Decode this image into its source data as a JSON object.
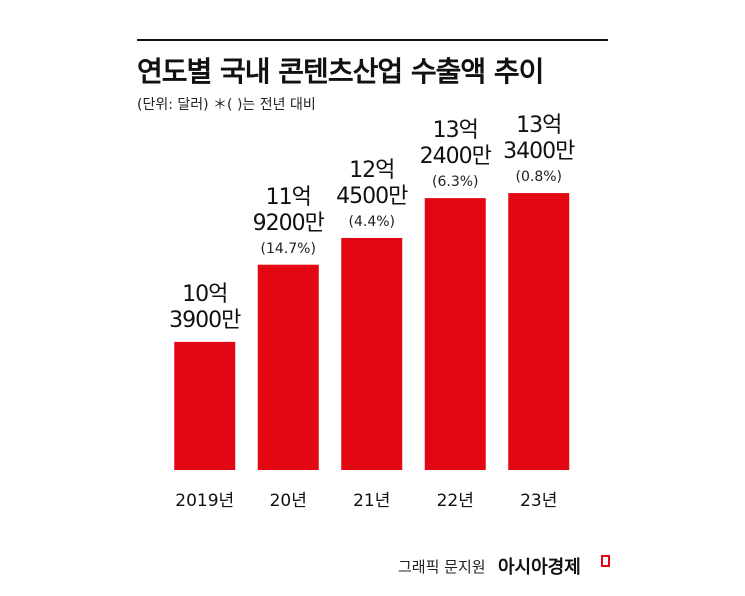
{
  "chart_data": {
    "type": "bar",
    "title": "연도별 국내 콘텐츠산업 수출액 추이",
    "subtitle": "(단위: 달러)  ＊( )는 전년 대비",
    "categories": [
      "2019년",
      "20년",
      "21년",
      "22년",
      "23년"
    ],
    "values": [
      1039000000,
      1192000000,
      1245000000,
      1324000000,
      1334000000
    ],
    "value_labels": [
      "10억\n3900만",
      "11억\n9200만",
      "12억\n4500만",
      "13억\n2400만",
      "13억\n3400만"
    ],
    "annotations": [
      null,
      "(14.7%)",
      "(4.4%)",
      "(6.3%)",
      "(0.8%)"
    ],
    "color": "#e30613",
    "ylim": [
      785000000,
      1350000000
    ],
    "credit": "그래픽 문지원",
    "publisher": "아시아경제"
  }
}
